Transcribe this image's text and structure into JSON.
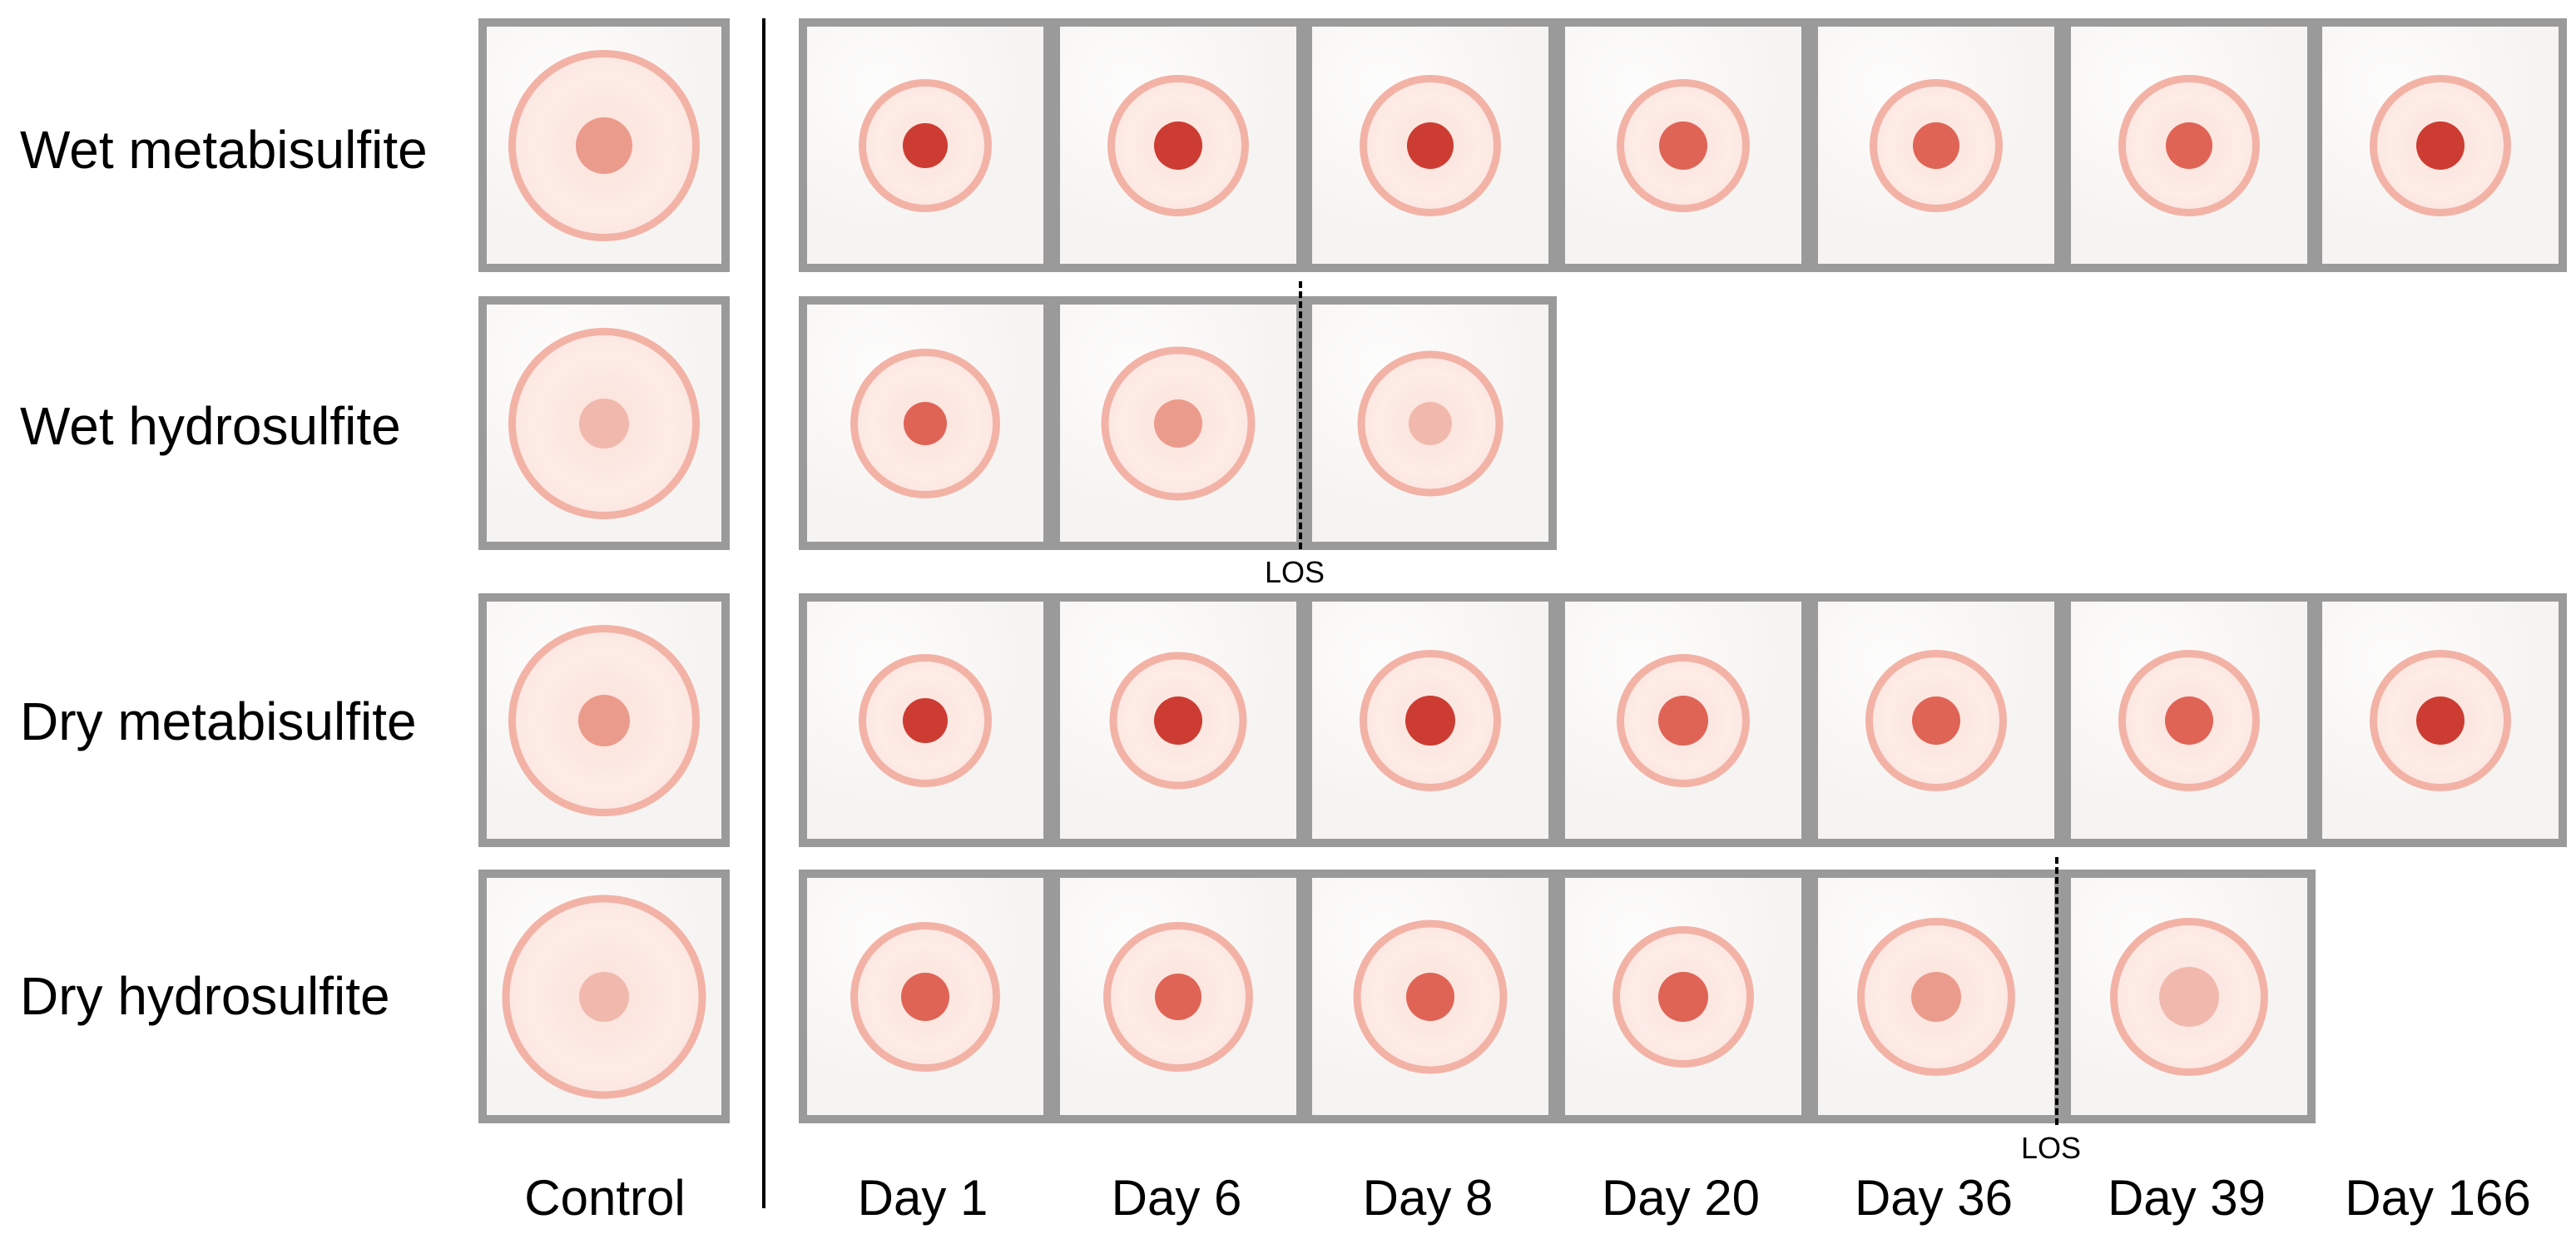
{
  "rows": [
    {
      "label": "Wet metabisulfite"
    },
    {
      "label": "Wet hydrosulfite"
    },
    {
      "label": "Dry metabisulfite"
    },
    {
      "label": "Dry hydrosulfite"
    }
  ],
  "columns": [
    {
      "label": "Control"
    },
    {
      "label": "Day 1"
    },
    {
      "label": "Day 6"
    },
    {
      "label": "Day 8"
    },
    {
      "label": "Day 20"
    },
    {
      "label": "Day 36"
    },
    {
      "label": "Day 39"
    },
    {
      "label": "Day 166"
    }
  ],
  "los_markers": [
    {
      "label": "LOS"
    },
    {
      "label": "LOS"
    }
  ],
  "colors": {
    "ring": "#f3b2a6",
    "halo": "#fbe1da",
    "spot_dark": "#cc3c32",
    "spot_mid": "#df6456",
    "spot_light": "#eb9b8c",
    "spot_faint": "#f1b9ad",
    "frame": "#9a9a9a"
  }
}
